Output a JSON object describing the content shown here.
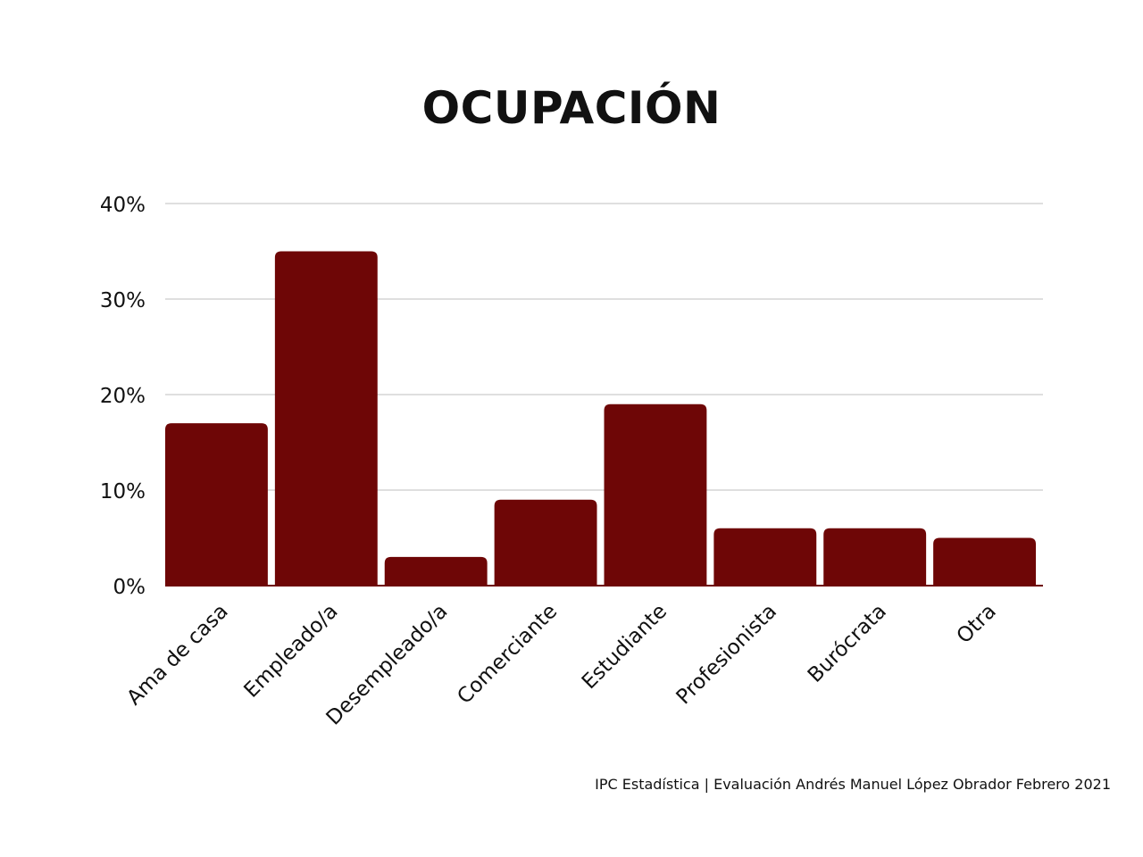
{
  "chart_data": {
    "type": "bar",
    "title": "OCUPACIÓN",
    "xlabel": "",
    "ylabel": "",
    "categories": [
      "Ama de casa",
      "Empleado/a",
      "Desempleado/a",
      "Comerciante",
      "Estudiante",
      "Profesionista",
      "Burócrata",
      "Otra"
    ],
    "values": [
      17,
      35,
      3,
      9,
      19,
      6,
      6,
      5
    ],
    "ylim": [
      0,
      40
    ],
    "yticks": [
      "0%",
      "10%",
      "20%",
      "30%",
      "40%"
    ],
    "ytick_values": [
      0,
      10,
      20,
      30,
      40
    ],
    "grid": true,
    "bar_color": "#6e0606",
    "grid_color": "#cccccc"
  },
  "footer": {
    "source": "IPC Estadística | Evaluación Andrés Manuel López Obrador Febrero 2021"
  }
}
